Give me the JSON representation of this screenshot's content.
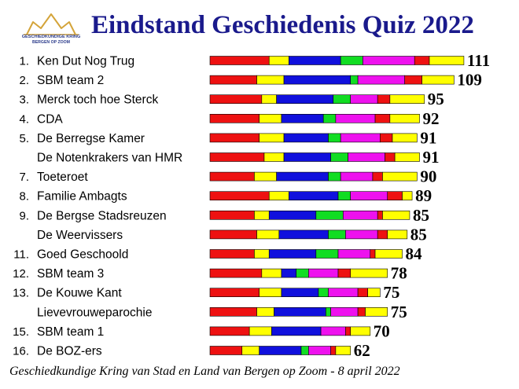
{
  "header": {
    "title": "Eindstand Geschiedenis Quiz 2022",
    "logo_line1": "GESCHIEDKUNDIGE KRING",
    "logo_line2": "BERGEN OP ZOOM"
  },
  "footer": "Geschiedkundige Kring van Stad en Land van Bergen op Zoom - 8 april 2022",
  "colors": {
    "segments": [
      "#ee1111",
      "#ffff00",
      "#1010dd",
      "#11dd22",
      "#ee11ee",
      "#ee1111",
      "#ffff00"
    ],
    "logo": "#2a3a8a",
    "title": "#1a1a8c"
  },
  "chart_data": {
    "type": "bar",
    "orientation": "horizontal",
    "stacked": true,
    "xlim": [
      0,
      111
    ],
    "grid": false,
    "legend": "none",
    "rows": [
      {
        "rank": "1.",
        "team": "Ken Dut Nog Trug",
        "total": 111,
        "segments": [
          24,
          8,
          21,
          9,
          21,
          6,
          14
        ]
      },
      {
        "rank": "2.",
        "team": "SBM team 2",
        "total": 109,
        "segments": [
          19,
          11,
          27,
          3,
          19,
          7,
          13
        ]
      },
      {
        "rank": "3.",
        "team": "Merck toch hoe Sterck",
        "total": 95,
        "segments": [
          21,
          6,
          23,
          7,
          11,
          5,
          14
        ]
      },
      {
        "rank": "4.",
        "team": "CDA",
        "total": 92,
        "segments": [
          20,
          9,
          17,
          5,
          16,
          6,
          12
        ]
      },
      {
        "rank": "5.",
        "team": "De Berregse Kamer",
        "total": 91,
        "segments": [
          20,
          10,
          18,
          5,
          16,
          5,
          10
        ]
      },
      {
        "rank": "",
        "team": "De Notenkrakers van HMR",
        "total": 91,
        "segments": [
          22,
          8,
          19,
          7,
          15,
          4,
          10
        ]
      },
      {
        "rank": "7.",
        "team": "Toeteroet",
        "total": 90,
        "segments": [
          18,
          9,
          21,
          5,
          13,
          4,
          14
        ]
      },
      {
        "rank": "8.",
        "team": "Familie Ambagts",
        "total": 89,
        "segments": [
          24,
          8,
          20,
          5,
          15,
          6,
          4
        ]
      },
      {
        "rank": "9.",
        "team": "De Bergse Stadsreuzen",
        "total": 85,
        "segments": [
          18,
          6,
          19,
          11,
          14,
          2,
          11
        ]
      },
      {
        "rank": "",
        "team": "De Weervissers",
        "total": 85,
        "segments": [
          19,
          9,
          20,
          7,
          13,
          4,
          8
        ]
      },
      {
        "rank": "11.",
        "team": "Goed Geschoold",
        "total": 84,
        "segments": [
          18,
          6,
          19,
          9,
          13,
          2,
          11
        ]
      },
      {
        "rank": "12.",
        "team": "SBM team 3",
        "total": 78,
        "segments": [
          21,
          8,
          6,
          5,
          12,
          5,
          15
        ]
      },
      {
        "rank": "13.",
        "team": "De Kouwe Kant",
        "total": 75,
        "segments": [
          20,
          9,
          15,
          4,
          12,
          4,
          5
        ]
      },
      {
        "rank": "",
        "team": "Lievevrouweparochie",
        "total": 75,
        "segments": [
          19,
          7,
          21,
          2,
          11,
          3,
          9
        ]
      },
      {
        "rank": "15.",
        "team": "SBM team 1",
        "total": 70,
        "segments": [
          16,
          9,
          20,
          0,
          10,
          2,
          8
        ]
      },
      {
        "rank": "16.",
        "team": "De BOZ-ers",
        "total": 62,
        "segments": [
          13,
          7,
          17,
          3,
          9,
          2,
          6
        ]
      }
    ]
  }
}
